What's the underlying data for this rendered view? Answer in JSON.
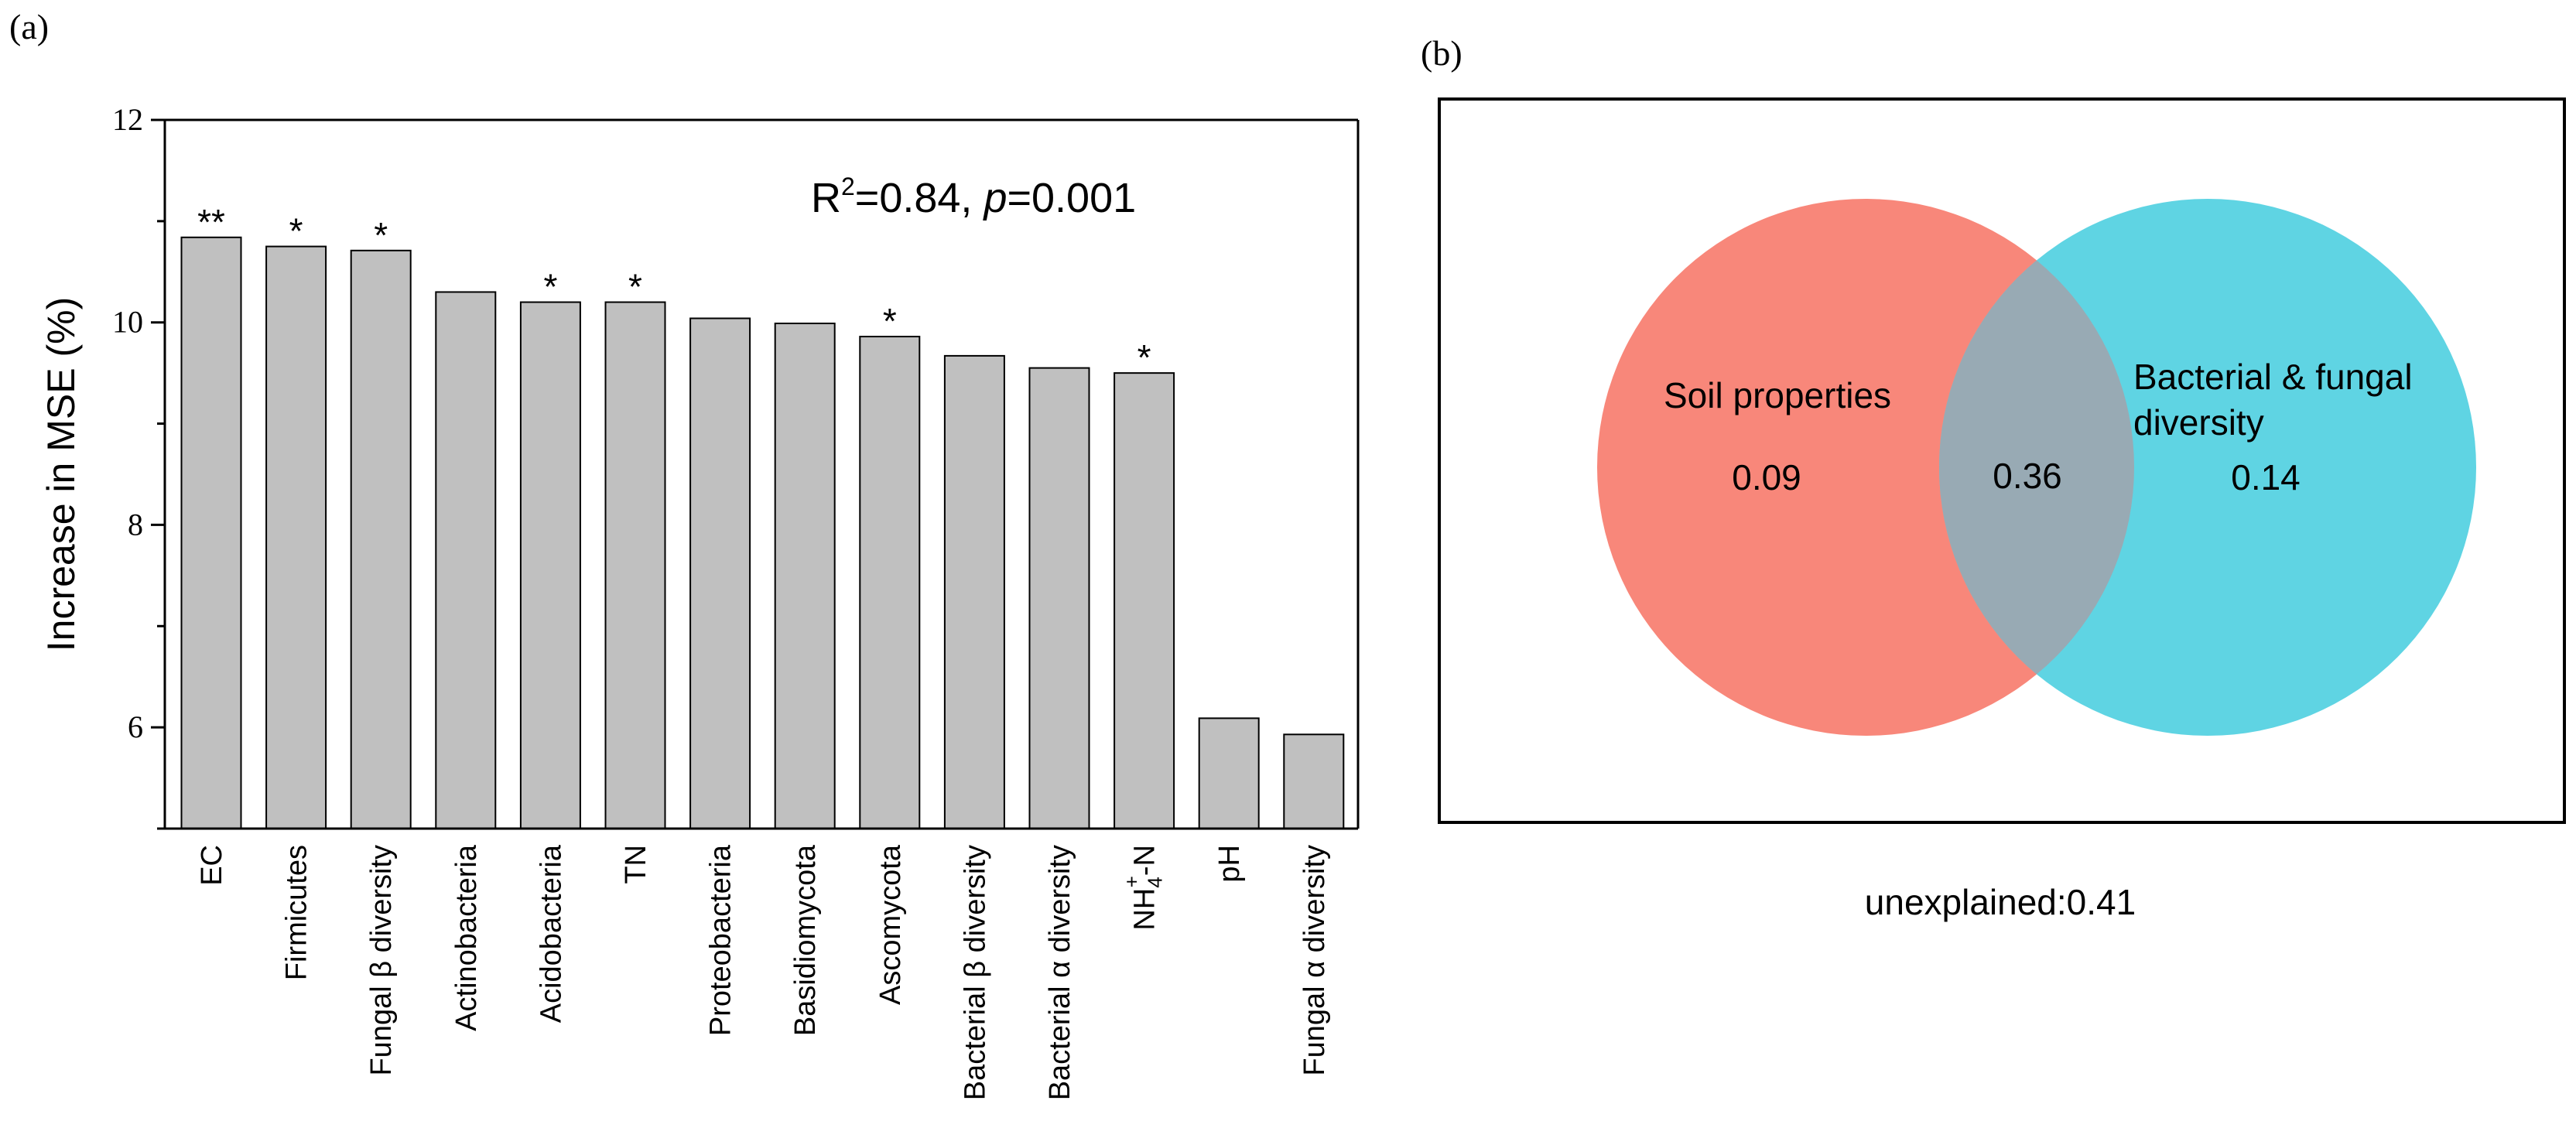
{
  "chart_data": [
    {
      "type": "bar",
      "panel_label": "(a)",
      "title": "",
      "xlabel": "",
      "ylabel": "Increase in MSE (%)",
      "ylim": [
        5,
        12
      ],
      "yticks": [
        6,
        8,
        10,
        12
      ],
      "grid": false,
      "annotation": {
        "prefix": "R",
        "sup": "2",
        "mid": "=0.84, ",
        "p": "p",
        "suffix": "=0.001"
      },
      "categories": [
        {
          "name": "EC",
          "value": 10.84,
          "significance": "**"
        },
        {
          "name": "Firmicutes",
          "value": 10.75,
          "significance": "*"
        },
        {
          "name": "Fungal β diversity",
          "value": 10.71,
          "significance": "*"
        },
        {
          "name": "Actinobacteria",
          "value": 10.3,
          "significance": ""
        },
        {
          "name": "Acidobacteria",
          "value": 10.2,
          "significance": "*"
        },
        {
          "name": "TN",
          "value": 10.2,
          "significance": "*"
        },
        {
          "name": "Proteobacteria",
          "value": 10.04,
          "significance": ""
        },
        {
          "name": "Basidiomycota",
          "value": 9.99,
          "significance": ""
        },
        {
          "name": "Ascomycota",
          "value": 9.86,
          "significance": "*"
        },
        {
          "name": "Bacterial β diversity",
          "value": 9.67,
          "significance": ""
        },
        {
          "name": "Bacterial α diversity",
          "value": 9.55,
          "significance": ""
        },
        {
          "name": "NH4+-N",
          "display": {
            "base": "NH",
            "sub": "4",
            "sup": "+",
            "tail": "-N"
          },
          "value": 9.5,
          "significance": "*"
        },
        {
          "name": "pH",
          "value": 6.09,
          "significance": ""
        },
        {
          "name": "Fungal  α  diversity",
          "value": 5.93,
          "significance": ""
        }
      ],
      "bar_color": "#c0c0c0"
    },
    {
      "type": "venn",
      "panel_label": "(b)",
      "sets": [
        {
          "label": "Soil properties",
          "unique_value": "0.09",
          "color": "#f8877a"
        },
        {
          "label_lines": [
            "Bacterial & fungal",
            "diversity"
          ],
          "unique_value": "0.14",
          "color": "#5fd4e3"
        }
      ],
      "overlap_value": "0.36",
      "overlap_color": "#98aab4",
      "unexplained": "unexplained:0.41"
    }
  ]
}
